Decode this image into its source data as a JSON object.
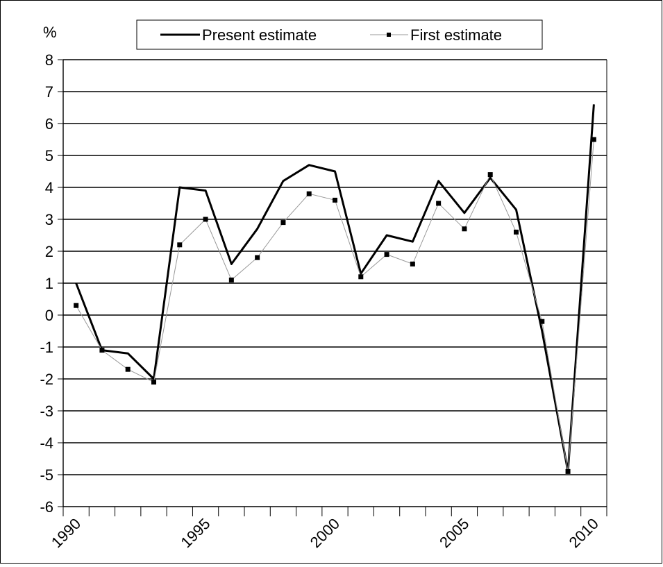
{
  "chart_data": {
    "type": "line",
    "title": "",
    "xlabel": "",
    "ylabel": "%",
    "ylim": [
      -6,
      8
    ],
    "yticks": [
      "8",
      "7",
      "6",
      "5",
      "4",
      "3",
      "2",
      "1",
      "0",
      "-1",
      "-2",
      "-3",
      "-4",
      "-5",
      "-6"
    ],
    "xtick_labels": [
      "1990",
      "1995",
      "2000",
      "2005",
      "2010"
    ],
    "grid": true,
    "legend": "top",
    "x": [
      1990,
      1991,
      1992,
      1993,
      1994,
      1995,
      1996,
      1997,
      1998,
      1999,
      2000,
      2001,
      2002,
      2003,
      2004,
      2005,
      2006,
      2007,
      2008,
      2009,
      2010
    ],
    "series": [
      {
        "name": "Present estimate",
        "color": "#000000",
        "style": "thick-line",
        "values": [
          1.0,
          -1.1,
          -1.2,
          -2.0,
          4.0,
          3.9,
          1.6,
          2.7,
          4.2,
          4.7,
          4.5,
          1.3,
          2.5,
          2.3,
          4.2,
          3.2,
          4.3,
          3.3,
          -0.5,
          -4.9,
          6.6
        ]
      },
      {
        "name": "First estimate",
        "color": "#000000",
        "line_color": "#999999",
        "style": "thin-line-square-markers",
        "values": [
          0.3,
          -1.1,
          -1.7,
          -2.1,
          2.2,
          3.0,
          1.1,
          1.8,
          2.9,
          3.8,
          3.6,
          1.2,
          1.9,
          1.6,
          3.5,
          2.7,
          4.4,
          2.6,
          -0.2,
          -4.9,
          5.5
        ]
      }
    ]
  }
}
